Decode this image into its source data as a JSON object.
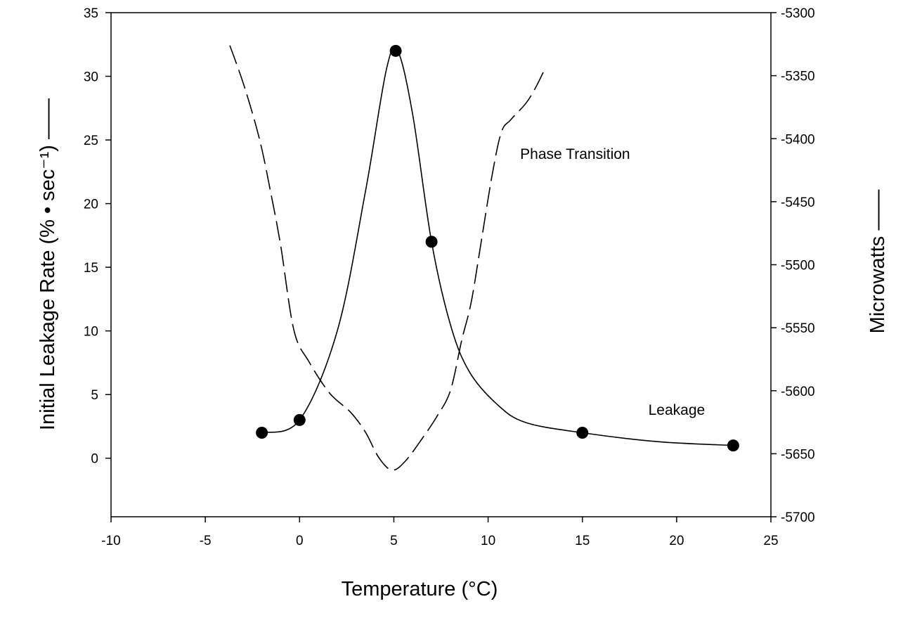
{
  "chart_data": {
    "type": "line",
    "title": "",
    "xlabel": "Temperature (°C)",
    "ylabel_left": "Initial Leakage Rate (% • sec⁻¹) ——",
    "ylabel_right": "Microwatts ——",
    "xlim": [
      -10,
      25
    ],
    "ylim_left": [
      -4.6,
      35
    ],
    "ylim_right": [
      -5700,
      -5300
    ],
    "x_ticks": [
      -10,
      -5,
      0,
      5,
      10,
      15,
      20,
      25
    ],
    "y_ticks_left": [
      0,
      5,
      10,
      15,
      20,
      25,
      30,
      35
    ],
    "y_ticks_right": [
      -5300,
      -5350,
      -5400,
      -5450,
      -5500,
      -5550,
      -5600,
      -5650,
      -5700
    ],
    "grid": false,
    "annotations": [
      {
        "text": "Phase Transition",
        "x": 11.7,
        "y_left": 23.5
      },
      {
        "text": "Leakage",
        "x": 18.5,
        "y_left": 3.4
      }
    ],
    "series": [
      {
        "name": "Leakage",
        "axis": "left",
        "style": "solid-with-markers",
        "points": [
          [
            -2,
            2
          ],
          [
            0,
            3
          ],
          [
            5.1,
            32
          ],
          [
            7,
            17
          ],
          [
            15,
            2
          ],
          [
            23,
            1
          ]
        ],
        "curve": [
          [
            -2,
            2
          ],
          [
            0,
            3
          ],
          [
            2,
            10
          ],
          [
            3.5,
            21
          ],
          [
            4.6,
            30.5
          ],
          [
            5.2,
            32
          ],
          [
            6,
            27
          ],
          [
            7,
            17
          ],
          [
            8,
            10.5
          ],
          [
            9,
            6.8
          ],
          [
            10.5,
            4.2
          ],
          [
            12,
            2.8
          ],
          [
            15,
            2
          ],
          [
            19,
            1.3
          ],
          [
            23,
            1
          ]
        ]
      },
      {
        "name": "Phase Transition",
        "axis": "right",
        "style": "dashed",
        "curve": [
          [
            -3.7,
            -5326
          ],
          [
            -2.9,
            -5360
          ],
          [
            -2.1,
            -5402
          ],
          [
            -1.5,
            -5445
          ],
          [
            -1,
            -5485
          ],
          [
            -0.3,
            -5552
          ],
          [
            0.5,
            -5577
          ],
          [
            1.6,
            -5602
          ],
          [
            2.7,
            -5617
          ],
          [
            3.5,
            -5633
          ],
          [
            4.2,
            -5653
          ],
          [
            4.9,
            -5663
          ],
          [
            5.6,
            -5656
          ],
          [
            6.5,
            -5638
          ],
          [
            7.3,
            -5620
          ],
          [
            8,
            -5600
          ],
          [
            8.6,
            -5560
          ],
          [
            9.1,
            -5530
          ],
          [
            9.6,
            -5485
          ],
          [
            10.2,
            -5430
          ],
          [
            10.7,
            -5395
          ],
          [
            11.2,
            -5385
          ],
          [
            12,
            -5372
          ],
          [
            12.5,
            -5360
          ],
          [
            13,
            -5345
          ]
        ]
      }
    ]
  }
}
